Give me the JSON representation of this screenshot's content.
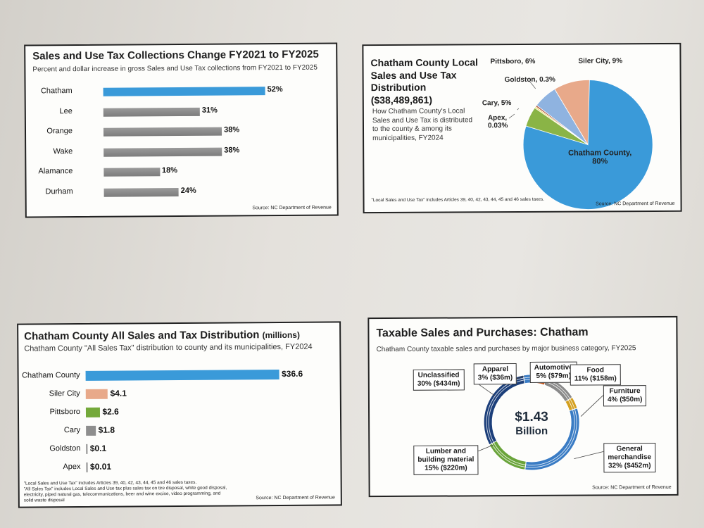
{
  "colors": {
    "highlight_bar": "#3a9ad9",
    "gray_bar": "#8e8e8e",
    "pie_chatham": "#3a9ad9",
    "pie_siler": "#e8a98a",
    "pie_pittsboro": "#8fb3e0",
    "pie_cary": "#8ab446",
    "pie_goldston": "#b0533a",
    "pie_apex": "#f0e070",
    "p3_chatham": "#3a9ad9",
    "p3_siler": "#e8a98a",
    "p3_pittsboro": "#74a93a",
    "p3_cary": "#8e8e8e"
  },
  "chart_data": [
    {
      "type": "bar",
      "orientation": "horizontal",
      "title": "Sales and Use Tax Collections Change FY2021 to FY2025",
      "subtitle": "Percent and dollar increase in gross Sales and Use Tax collections from FY2021 to FY2025",
      "categories": [
        "Chatham",
        "Lee",
        "Orange",
        "Wake",
        "Alamance",
        "Durham"
      ],
      "values": [
        52,
        31,
        38,
        38,
        18,
        24
      ],
      "value_labels": [
        "52%",
        "31%",
        "38%",
        "38%",
        "18%",
        "24%"
      ],
      "source": "Source: NC Department of Revenue",
      "xlim": [
        0,
        60
      ]
    },
    {
      "type": "pie",
      "title": "Chatham County Local Sales and Use Tax Distribution ($38,489,861)",
      "title_lines": [
        "Chatham County Local",
        "Sales and Use Tax",
        "Distribution",
        "($38,489,861)"
      ],
      "subtitle": "How Chatham County's Local Sales and Use Tax is distributed to the county & among its municipalities, FY2024",
      "slices": [
        {
          "name": "Chatham County",
          "value": 80,
          "label": "Chatham County,",
          "label2": "80%"
        },
        {
          "name": "Cary",
          "value": 5,
          "label": "Cary, 5%"
        },
        {
          "name": "Apex",
          "value": 0.03,
          "label": "Apex,",
          "label2": "0.03%"
        },
        {
          "name": "Goldston",
          "value": 0.3,
          "label": "Goldston, 0.3%"
        },
        {
          "name": "Pittsboro",
          "value": 6,
          "label": "Pittsboro, 6%"
        },
        {
          "name": "Siler City",
          "value": 9,
          "label": "Siler City, 9%"
        }
      ],
      "note": "\"Local Sales and Use Tax\" includes Articles 39, 40, 42, 43, 44, 45 and 46 sales taxes.",
      "source": "Source: NC Department of Revenue"
    },
    {
      "type": "bar",
      "orientation": "horizontal",
      "title": "Chatham County All Sales and Tax Distribution",
      "title_suffix": "(millions)",
      "subtitle": "Chatham County \"All Sales Tax\" distribution to county and its municipalities, FY2024",
      "categories": [
        "Chatham County",
        "Siler City",
        "Pittsboro",
        "Cary",
        "Goldston",
        "Apex"
      ],
      "values": [
        36.6,
        4.1,
        2.6,
        1.8,
        0.1,
        0.01
      ],
      "value_labels": [
        "$36.6",
        "$4.1",
        "$2.6",
        "$1.8",
        "$0.1",
        "$0.01"
      ],
      "xlim": [
        0,
        40
      ],
      "note_lines": [
        "\"Local Sales and Use Tax\" includes Articles 39, 40, 42, 43, 44, 45 and 46 sales taxes.",
        "\"All Sales Tax\" includes Local Sales and Use tax plus sales tax on tire disposal, white good disposal,",
        "electricity, piped natural gas, telecommunications, beer and wine excise, video programming, and",
        "solid waste disposal"
      ],
      "source": "Source: NC Department of Revenue"
    },
    {
      "type": "pie",
      "style": "donut",
      "title": "Taxable Sales and Purchases: Chatham",
      "subtitle": "Chatham County taxable sales and purchases by major business category, FY2025",
      "center_label": [
        "$1.43",
        "Billion"
      ],
      "slices": [
        {
          "name": "Automotive",
          "percent": 5,
          "amount": "$79m",
          "label": [
            "Automotive",
            "5% ($79m)"
          ]
        },
        {
          "name": "Food",
          "percent": 11,
          "amount": "$158m",
          "label": [
            "Food",
            "11% ($158m)"
          ]
        },
        {
          "name": "Furniture",
          "percent": 4,
          "amount": "$50m",
          "label": [
            "Furniture",
            "4% ($50m)"
          ]
        },
        {
          "name": "General merchandise",
          "percent": 32,
          "amount": "$452m",
          "label": [
            "General",
            "merchandise",
            "32% ($452m)"
          ]
        },
        {
          "name": "Lumber and building material",
          "percent": 15,
          "amount": "$220m",
          "label": [
            "Lumber and",
            "building material",
            "15% ($220m)"
          ]
        },
        {
          "name": "Unclassified",
          "percent": 30,
          "amount": "$434m",
          "label": [
            "Unclassified",
            "30% ($434m)"
          ]
        },
        {
          "name": "Apparel",
          "percent": 3,
          "amount": "$36m",
          "label": [
            "Apparel",
            "3% ($36m)"
          ]
        }
      ],
      "source": "Source: NC Department of Revenue"
    }
  ]
}
